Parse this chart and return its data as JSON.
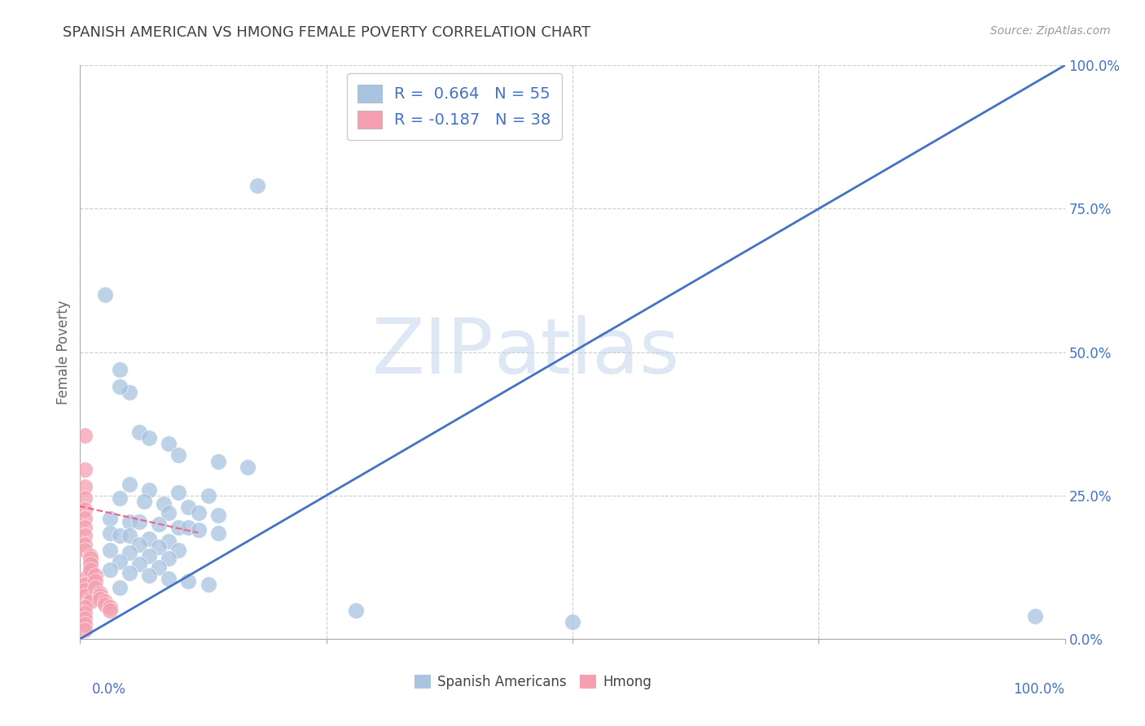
{
  "title": "SPANISH AMERICAN VS HMONG FEMALE POVERTY CORRELATION CHART",
  "source": "Source: ZipAtlas.com",
  "ylabel": "Female Poverty",
  "xlim": [
    0,
    1
  ],
  "ylim": [
    0,
    1
  ],
  "ytick_values": [
    0,
    0.25,
    0.5,
    0.75,
    1.0
  ],
  "grid_color": "#cccccc",
  "background_color": "#ffffff",
  "watermark_zip": "ZIP",
  "watermark_atlas": "atlas",
  "legend_labels": [
    "Spanish Americans",
    "Hmong"
  ],
  "r_blue": 0.664,
  "n_blue": 55,
  "r_pink": -0.187,
  "n_pink": 38,
  "blue_color": "#a8c4e0",
  "pink_color": "#f4a0b0",
  "blue_line_color": "#4472c4",
  "pink_line_color": "#f06090",
  "title_color": "#404040",
  "tick_color": "#4472c4",
  "blue_line": [
    [
      0.0,
      0.0
    ],
    [
      1.0,
      1.0
    ]
  ],
  "pink_line": [
    [
      -0.01,
      0.235
    ],
    [
      0.12,
      0.185
    ]
  ],
  "blue_scatter": [
    [
      0.025,
      0.6
    ],
    [
      0.18,
      0.79
    ],
    [
      0.04,
      0.47
    ],
    [
      0.05,
      0.43
    ],
    [
      0.04,
      0.44
    ],
    [
      0.06,
      0.36
    ],
    [
      0.07,
      0.35
    ],
    [
      0.09,
      0.34
    ],
    [
      0.1,
      0.32
    ],
    [
      0.14,
      0.31
    ],
    [
      0.17,
      0.3
    ],
    [
      0.05,
      0.27
    ],
    [
      0.07,
      0.26
    ],
    [
      0.1,
      0.255
    ],
    [
      0.13,
      0.25
    ],
    [
      0.04,
      0.245
    ],
    [
      0.065,
      0.24
    ],
    [
      0.085,
      0.235
    ],
    [
      0.11,
      0.23
    ],
    [
      0.09,
      0.22
    ],
    [
      0.12,
      0.22
    ],
    [
      0.14,
      0.215
    ],
    [
      0.03,
      0.21
    ],
    [
      0.05,
      0.205
    ],
    [
      0.06,
      0.205
    ],
    [
      0.08,
      0.2
    ],
    [
      0.1,
      0.195
    ],
    [
      0.11,
      0.195
    ],
    [
      0.12,
      0.19
    ],
    [
      0.14,
      0.185
    ],
    [
      0.03,
      0.185
    ],
    [
      0.04,
      0.18
    ],
    [
      0.05,
      0.18
    ],
    [
      0.07,
      0.175
    ],
    [
      0.09,
      0.17
    ],
    [
      0.06,
      0.165
    ],
    [
      0.08,
      0.16
    ],
    [
      0.1,
      0.155
    ],
    [
      0.03,
      0.155
    ],
    [
      0.05,
      0.15
    ],
    [
      0.07,
      0.145
    ],
    [
      0.09,
      0.14
    ],
    [
      0.04,
      0.135
    ],
    [
      0.06,
      0.13
    ],
    [
      0.08,
      0.125
    ],
    [
      0.03,
      0.12
    ],
    [
      0.05,
      0.115
    ],
    [
      0.07,
      0.11
    ],
    [
      0.09,
      0.105
    ],
    [
      0.11,
      0.1
    ],
    [
      0.13,
      0.095
    ],
    [
      0.04,
      0.09
    ],
    [
      0.28,
      0.05
    ],
    [
      0.97,
      0.04
    ],
    [
      0.5,
      0.03
    ]
  ],
  "pink_scatter": [
    [
      0.005,
      0.355
    ],
    [
      0.005,
      0.295
    ],
    [
      0.005,
      0.265
    ],
    [
      0.005,
      0.245
    ],
    [
      0.005,
      0.225
    ],
    [
      0.005,
      0.21
    ],
    [
      0.005,
      0.195
    ],
    [
      0.005,
      0.18
    ],
    [
      0.005,
      0.165
    ],
    [
      0.005,
      0.155
    ],
    [
      0.01,
      0.145
    ],
    [
      0.01,
      0.135
    ],
    [
      0.01,
      0.125
    ],
    [
      0.01,
      0.115
    ],
    [
      0.005,
      0.105
    ],
    [
      0.005,
      0.095
    ],
    [
      0.005,
      0.085
    ],
    [
      0.005,
      0.075
    ],
    [
      0.01,
      0.07
    ],
    [
      0.01,
      0.065
    ],
    [
      0.005,
      0.055
    ],
    [
      0.005,
      0.045
    ],
    [
      0.005,
      0.035
    ],
    [
      0.005,
      0.025
    ],
    [
      0.005,
      0.015
    ],
    [
      0.01,
      0.14
    ],
    [
      0.01,
      0.13
    ],
    [
      0.01,
      0.12
    ],
    [
      0.015,
      0.11
    ],
    [
      0.015,
      0.1
    ],
    [
      0.015,
      0.09
    ],
    [
      0.02,
      0.08
    ],
    [
      0.02,
      0.075
    ],
    [
      0.02,
      0.07
    ],
    [
      0.025,
      0.065
    ],
    [
      0.025,
      0.06
    ],
    [
      0.03,
      0.055
    ],
    [
      0.03,
      0.05
    ]
  ]
}
